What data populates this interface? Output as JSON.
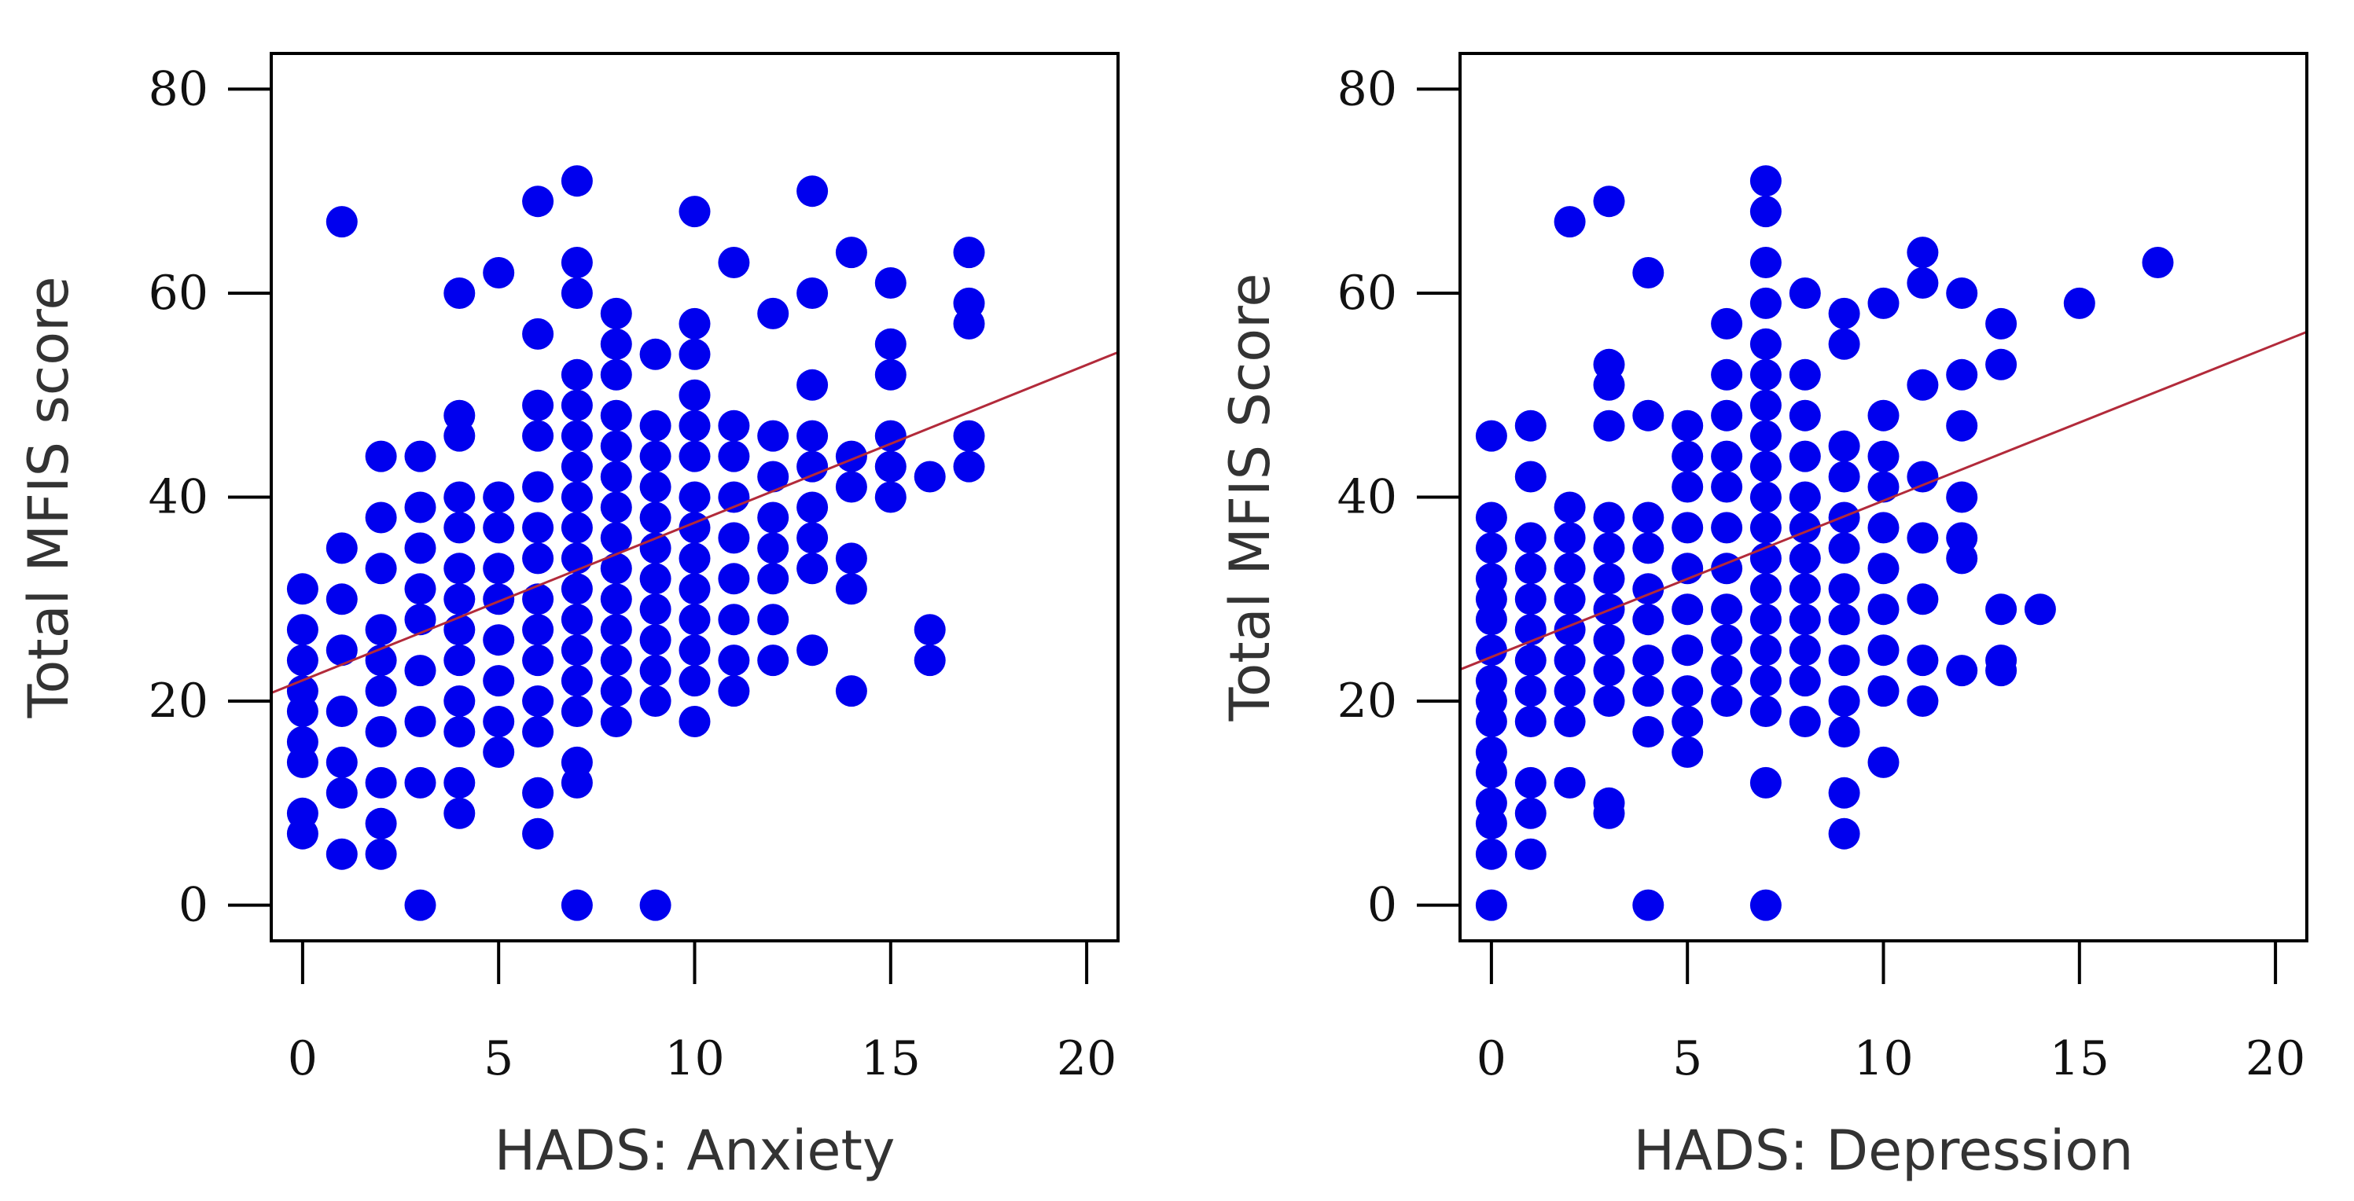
{
  "chart_data": [
    {
      "type": "scatter",
      "xlabel": "HADS: Anxiety",
      "ylabel": "Total MFIS score",
      "xlim": [
        -0.8,
        20.8
      ],
      "ylim": [
        -3.5,
        83.5
      ],
      "xticks": [
        "0",
        "5",
        "10",
        "15",
        "20"
      ],
      "yticks": [
        "0",
        "20",
        "40",
        "60",
        "80"
      ],
      "marker_color": "#0000ee",
      "trendline": {
        "color": "#b22a3a",
        "x": [
          -0.8,
          20.8
        ],
        "y": [
          20.8,
          54.2
        ]
      },
      "points": [
        [
          0,
          7
        ],
        [
          0,
          9
        ],
        [
          0,
          14
        ],
        [
          0,
          16
        ],
        [
          0,
          19
        ],
        [
          0,
          21
        ],
        [
          0,
          24
        ],
        [
          0,
          31
        ],
        [
          0,
          27
        ],
        [
          1,
          5
        ],
        [
          1,
          11
        ],
        [
          1,
          14
        ],
        [
          1,
          19
        ],
        [
          1,
          25
        ],
        [
          1,
          30
        ],
        [
          1,
          35
        ],
        [
          1,
          67
        ],
        [
          2,
          5
        ],
        [
          2,
          8
        ],
        [
          2,
          12
        ],
        [
          2,
          17
        ],
        [
          2,
          21
        ],
        [
          2,
          24
        ],
        [
          2,
          27
        ],
        [
          2,
          33
        ],
        [
          2,
          38
        ],
        [
          2,
          44
        ],
        [
          3,
          0
        ],
        [
          3,
          12
        ],
        [
          3,
          18
        ],
        [
          3,
          23
        ],
        [
          3,
          28
        ],
        [
          3,
          31
        ],
        [
          3,
          35
        ],
        [
          3,
          39
        ],
        [
          3,
          44
        ],
        [
          4,
          9
        ],
        [
          4,
          12
        ],
        [
          4,
          17
        ],
        [
          4,
          20
        ],
        [
          4,
          24
        ],
        [
          4,
          27
        ],
        [
          4,
          30
        ],
        [
          4,
          33
        ],
        [
          4,
          37
        ],
        [
          4,
          40
        ],
        [
          4,
          46
        ],
        [
          4,
          48
        ],
        [
          4,
          60
        ],
        [
          5,
          15
        ],
        [
          5,
          18
        ],
        [
          5,
          22
        ],
        [
          5,
          26
        ],
        [
          5,
          30
        ],
        [
          5,
          33
        ],
        [
          5,
          37
        ],
        [
          5,
          40
        ],
        [
          5,
          62
        ],
        [
          6,
          7
        ],
        [
          6,
          11
        ],
        [
          6,
          17
        ],
        [
          6,
          20
        ],
        [
          6,
          24
        ],
        [
          6,
          27
        ],
        [
          6,
          30
        ],
        [
          6,
          34
        ],
        [
          6,
          37
        ],
        [
          6,
          41
        ],
        [
          6,
          46
        ],
        [
          6,
          49
        ],
        [
          6,
          56
        ],
        [
          6,
          69
        ],
        [
          7,
          0
        ],
        [
          7,
          12
        ],
        [
          7,
          14
        ],
        [
          7,
          19
        ],
        [
          7,
          22
        ],
        [
          7,
          25
        ],
        [
          7,
          28
        ],
        [
          7,
          31
        ],
        [
          7,
          34
        ],
        [
          7,
          37
        ],
        [
          7,
          40
        ],
        [
          7,
          43
        ],
        [
          7,
          46
        ],
        [
          7,
          49
        ],
        [
          7,
          52
        ],
        [
          7,
          60
        ],
        [
          7,
          63
        ],
        [
          7,
          71
        ],
        [
          8,
          18
        ],
        [
          8,
          21
        ],
        [
          8,
          24
        ],
        [
          8,
          27
        ],
        [
          8,
          30
        ],
        [
          8,
          33
        ],
        [
          8,
          36
        ],
        [
          8,
          39
        ],
        [
          8,
          42
        ],
        [
          8,
          45
        ],
        [
          8,
          48
        ],
        [
          8,
          52
        ],
        [
          8,
          55
        ],
        [
          8,
          58
        ],
        [
          9,
          0
        ],
        [
          9,
          20
        ],
        [
          9,
          23
        ],
        [
          9,
          26
        ],
        [
          9,
          29
        ],
        [
          9,
          32
        ],
        [
          9,
          35
        ],
        [
          9,
          38
        ],
        [
          9,
          41
        ],
        [
          9,
          44
        ],
        [
          9,
          47
        ],
        [
          9,
          54
        ],
        [
          10,
          18
        ],
        [
          10,
          22
        ],
        [
          10,
          25
        ],
        [
          10,
          28
        ],
        [
          10,
          31
        ],
        [
          10,
          34
        ],
        [
          10,
          37
        ],
        [
          10,
          40
        ],
        [
          10,
          44
        ],
        [
          10,
          47
        ],
        [
          10,
          50
        ],
        [
          10,
          54
        ],
        [
          10,
          57
        ],
        [
          10,
          68
        ],
        [
          11,
          21
        ],
        [
          11,
          24
        ],
        [
          11,
          28
        ],
        [
          11,
          32
        ],
        [
          11,
          36
        ],
        [
          11,
          40
        ],
        [
          11,
          44
        ],
        [
          11,
          47
        ],
        [
          11,
          63
        ],
        [
          12,
          24
        ],
        [
          12,
          28
        ],
        [
          12,
          32
        ],
        [
          12,
          35
        ],
        [
          12,
          38
        ],
        [
          12,
          42
        ],
        [
          12,
          46
        ],
        [
          12,
          58
        ],
        [
          13,
          25
        ],
        [
          13,
          33
        ],
        [
          13,
          36
        ],
        [
          13,
          39
        ],
        [
          13,
          43
        ],
        [
          13,
          46
        ],
        [
          13,
          51
        ],
        [
          13,
          60
        ],
        [
          13,
          70
        ],
        [
          14,
          21
        ],
        [
          14,
          31
        ],
        [
          14,
          34
        ],
        [
          14,
          41
        ],
        [
          14,
          44
        ],
        [
          14,
          64
        ],
        [
          15,
          40
        ],
        [
          15,
          43
        ],
        [
          15,
          46
        ],
        [
          15,
          52
        ],
        [
          15,
          55
        ],
        [
          15,
          61
        ],
        [
          16,
          24
        ],
        [
          16,
          27
        ],
        [
          16,
          42
        ],
        [
          17,
          43
        ],
        [
          17,
          46
        ],
        [
          17,
          57
        ],
        [
          17,
          59
        ],
        [
          17,
          64
        ]
      ]
    },
    {
      "type": "scatter",
      "xlabel": "HADS: Depression",
      "ylabel": "Total MFIS Score",
      "xlim": [
        -0.8,
        20.8
      ],
      "ylim": [
        -3.5,
        83.5
      ],
      "xticks": [
        "0",
        "5",
        "10",
        "15",
        "20"
      ],
      "yticks": [
        "0",
        "20",
        "40",
        "60",
        "80"
      ],
      "marker_color": "#0000ee",
      "trendline": {
        "color": "#b22a3a",
        "x": [
          -0.8,
          20.8
        ],
        "y": [
          23.1,
          56.2
        ]
      },
      "points": [
        [
          0,
          0
        ],
        [
          0,
          5
        ],
        [
          0,
          8
        ],
        [
          0,
          10
        ],
        [
          0,
          13
        ],
        [
          0,
          15
        ],
        [
          0,
          18
        ],
        [
          0,
          20
        ],
        [
          0,
          22
        ],
        [
          0,
          25
        ],
        [
          0,
          28
        ],
        [
          0,
          30
        ],
        [
          0,
          32
        ],
        [
          0,
          35
        ],
        [
          0,
          38
        ],
        [
          0,
          46
        ],
        [
          1,
          5
        ],
        [
          1,
          9
        ],
        [
          1,
          12
        ],
        [
          1,
          18
        ],
        [
          1,
          21
        ],
        [
          1,
          24
        ],
        [
          1,
          27
        ],
        [
          1,
          30
        ],
        [
          1,
          33
        ],
        [
          1,
          36
        ],
        [
          1,
          42
        ],
        [
          1,
          47
        ],
        [
          2,
          12
        ],
        [
          2,
          18
        ],
        [
          2,
          21
        ],
        [
          2,
          24
        ],
        [
          2,
          27
        ],
        [
          2,
          30
        ],
        [
          2,
          33
        ],
        [
          2,
          36
        ],
        [
          2,
          39
        ],
        [
          2,
          67
        ],
        [
          3,
          9
        ],
        [
          3,
          10
        ],
        [
          3,
          20
        ],
        [
          3,
          23
        ],
        [
          3,
          26
        ],
        [
          3,
          29
        ],
        [
          3,
          32
        ],
        [
          3,
          35
        ],
        [
          3,
          38
        ],
        [
          3,
          47
        ],
        [
          3,
          51
        ],
        [
          3,
          53
        ],
        [
          3,
          69
        ],
        [
          4,
          0
        ],
        [
          4,
          17
        ],
        [
          4,
          21
        ],
        [
          4,
          24
        ],
        [
          4,
          28
        ],
        [
          4,
          31
        ],
        [
          4,
          35
        ],
        [
          4,
          38
        ],
        [
          4,
          48
        ],
        [
          4,
          62
        ],
        [
          5,
          15
        ],
        [
          5,
          18
        ],
        [
          5,
          21
        ],
        [
          5,
          25
        ],
        [
          5,
          29
        ],
        [
          5,
          33
        ],
        [
          5,
          37
        ],
        [
          5,
          41
        ],
        [
          5,
          44
        ],
        [
          5,
          47
        ],
        [
          6,
          20
        ],
        [
          6,
          23
        ],
        [
          6,
          26
        ],
        [
          6,
          29
        ],
        [
          6,
          33
        ],
        [
          6,
          37
        ],
        [
          6,
          41
        ],
        [
          6,
          44
        ],
        [
          6,
          48
        ],
        [
          6,
          52
        ],
        [
          6,
          57
        ],
        [
          7,
          0
        ],
        [
          7,
          12
        ],
        [
          7,
          19
        ],
        [
          7,
          22
        ],
        [
          7,
          25
        ],
        [
          7,
          28
        ],
        [
          7,
          31
        ],
        [
          7,
          34
        ],
        [
          7,
          37
        ],
        [
          7,
          40
        ],
        [
          7,
          43
        ],
        [
          7,
          46
        ],
        [
          7,
          49
        ],
        [
          7,
          52
        ],
        [
          7,
          55
        ],
        [
          7,
          59
        ],
        [
          7,
          63
        ],
        [
          7,
          68
        ],
        [
          7,
          71
        ],
        [
          8,
          18
        ],
        [
          8,
          22
        ],
        [
          8,
          25
        ],
        [
          8,
          28
        ],
        [
          8,
          31
        ],
        [
          8,
          34
        ],
        [
          8,
          37
        ],
        [
          8,
          40
        ],
        [
          8,
          44
        ],
        [
          8,
          48
        ],
        [
          8,
          52
        ],
        [
          8,
          60
        ],
        [
          9,
          7
        ],
        [
          9,
          11
        ],
        [
          9,
          17
        ],
        [
          9,
          20
        ],
        [
          9,
          24
        ],
        [
          9,
          28
        ],
        [
          9,
          31
        ],
        [
          9,
          35
        ],
        [
          9,
          38
        ],
        [
          9,
          42
        ],
        [
          9,
          45
        ],
        [
          9,
          55
        ],
        [
          9,
          58
        ],
        [
          10,
          14
        ],
        [
          10,
          21
        ],
        [
          10,
          25
        ],
        [
          10,
          29
        ],
        [
          10,
          33
        ],
        [
          10,
          37
        ],
        [
          10,
          41
        ],
        [
          10,
          44
        ],
        [
          10,
          48
        ],
        [
          10,
          59
        ],
        [
          11,
          20
        ],
        [
          11,
          24
        ],
        [
          11,
          30
        ],
        [
          11,
          36
        ],
        [
          11,
          42
        ],
        [
          11,
          51
        ],
        [
          11,
          61
        ],
        [
          11,
          64
        ],
        [
          12,
          23
        ],
        [
          12,
          34
        ],
        [
          12,
          36
        ],
        [
          12,
          40
        ],
        [
          12,
          47
        ],
        [
          12,
          52
        ],
        [
          12,
          60
        ],
        [
          13,
          23
        ],
        [
          13,
          24
        ],
        [
          13,
          29
        ],
        [
          13,
          53
        ],
        [
          13,
          57
        ],
        [
          14,
          29
        ],
        [
          15,
          59
        ],
        [
          17,
          63
        ]
      ]
    }
  ]
}
